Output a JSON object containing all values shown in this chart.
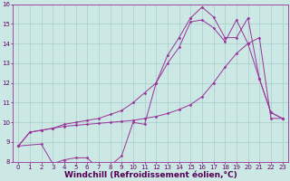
{
  "xlabel": "Windchill (Refroidissement éolien,°C)",
  "background_color": "#cce8e4",
  "grid_color": "#aacccc",
  "line_color": "#993399",
  "xlim": [
    -0.5,
    23.5
  ],
  "ylim": [
    8,
    16
  ],
  "xticks": [
    0,
    1,
    2,
    3,
    4,
    5,
    6,
    7,
    8,
    9,
    10,
    11,
    12,
    13,
    14,
    15,
    16,
    17,
    18,
    19,
    20,
    21,
    22,
    23
  ],
  "yticks": [
    8,
    9,
    10,
    11,
    12,
    13,
    14,
    15,
    16
  ],
  "line1_x": [
    0,
    1,
    2,
    3,
    4,
    5,
    6,
    7,
    8,
    9,
    10,
    11,
    12,
    13,
    14,
    15,
    16,
    17,
    18,
    19,
    20,
    21,
    22,
    23
  ],
  "line1_y": [
    8.8,
    9.5,
    9.6,
    9.7,
    9.8,
    9.85,
    9.9,
    9.95,
    10.0,
    10.05,
    10.1,
    10.2,
    10.3,
    10.45,
    10.65,
    10.9,
    11.3,
    12.0,
    12.8,
    13.5,
    14.0,
    14.3,
    10.2,
    10.2
  ],
  "line2_x": [
    0,
    2,
    3,
    4,
    5,
    6,
    7,
    8,
    9,
    10,
    11,
    12,
    13,
    14,
    15,
    15,
    16,
    17,
    18,
    19,
    20,
    21,
    22,
    23
  ],
  "line2_y": [
    8.8,
    8.9,
    7.9,
    8.1,
    8.2,
    8.2,
    7.65,
    7.8,
    8.3,
    10.0,
    9.9,
    12.0,
    13.4,
    14.3,
    15.3,
    15.3,
    15.85,
    15.35,
    14.3,
    14.3,
    15.3,
    12.2,
    10.5,
    10.2
  ],
  "line3_x": [
    0,
    1,
    2,
    3,
    4,
    5,
    6,
    7,
    8,
    9,
    10,
    11,
    12,
    13,
    14,
    15,
    16,
    17,
    18,
    19,
    20,
    21,
    22,
    23
  ],
  "line3_y": [
    8.8,
    9.5,
    9.6,
    9.7,
    9.9,
    10.0,
    10.1,
    10.2,
    10.4,
    10.6,
    11.0,
    11.5,
    12.0,
    13.0,
    13.8,
    15.1,
    15.2,
    14.8,
    14.1,
    15.2,
    14.0,
    12.2,
    10.5,
    10.2
  ],
  "tick_fontsize": 5,
  "label_fontsize": 6.5,
  "marker": "D",
  "markersize": 1.5,
  "linewidth": 0.7
}
